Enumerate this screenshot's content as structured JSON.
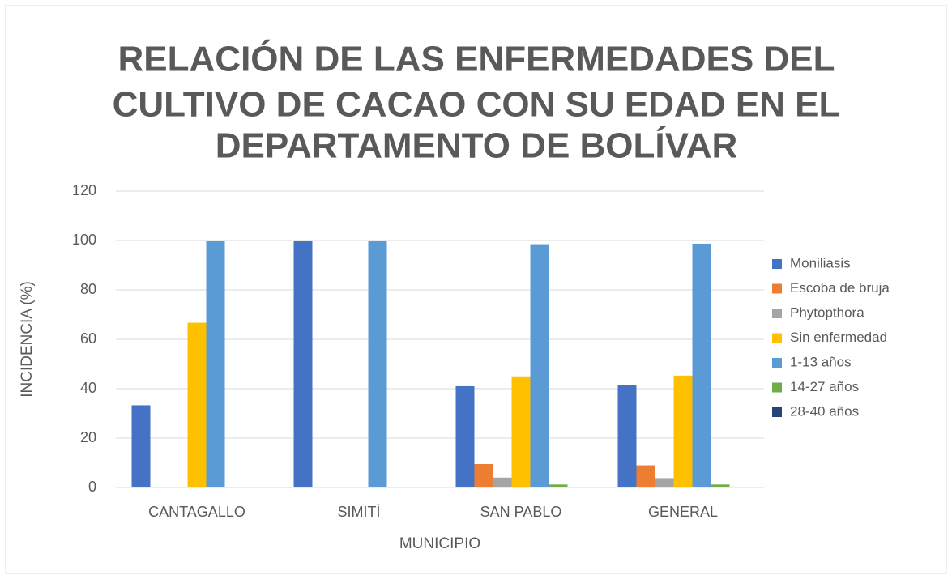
{
  "chart_data": {
    "type": "bar",
    "title": [
      "RELACIÓN DE LAS ENFERMEDADES DEL",
      "CULTIVO DE CACAO CON SU EDAD EN EL",
      "DEPARTAMENTO DE BOLÍVAR"
    ],
    "x_label": "MUNICIPIO",
    "y_label": "INCIDENCIA (%)",
    "categories": [
      "CANTAGALLO",
      "SIMITÍ",
      "SAN PABLO",
      "GENERAL"
    ],
    "series": [
      {
        "name": "Moniliasis",
        "color": "#4472c4",
        "values": [
          33.3,
          100,
          41,
          41.5
        ]
      },
      {
        "name": "Escoba de bruja",
        "color": "#ed7d31",
        "values": [
          0,
          0,
          9.5,
          9
        ]
      },
      {
        "name": "Phytopthora",
        "color": "#a5a5a5",
        "values": [
          0,
          0,
          4,
          3.8
        ]
      },
      {
        "name": "Sin enfermedad",
        "color": "#ffc000",
        "values": [
          66.7,
          0,
          45,
          45.3
        ]
      },
      {
        "name": "1-13 años",
        "color": "#5b9bd5",
        "values": [
          100,
          100,
          98.5,
          98.7
        ]
      },
      {
        "name": "14-27 años",
        "color": "#70ad47",
        "values": [
          0,
          0,
          1.2,
          1.2
        ]
      },
      {
        "name": "28-40 años",
        "color": "#264478",
        "values": [
          0,
          0,
          0,
          0
        ]
      }
    ],
    "ylim": [
      0,
      120
    ],
    "yticks": [
      0,
      20,
      40,
      60,
      80,
      100,
      120
    ],
    "grid": true,
    "legend": "right"
  }
}
